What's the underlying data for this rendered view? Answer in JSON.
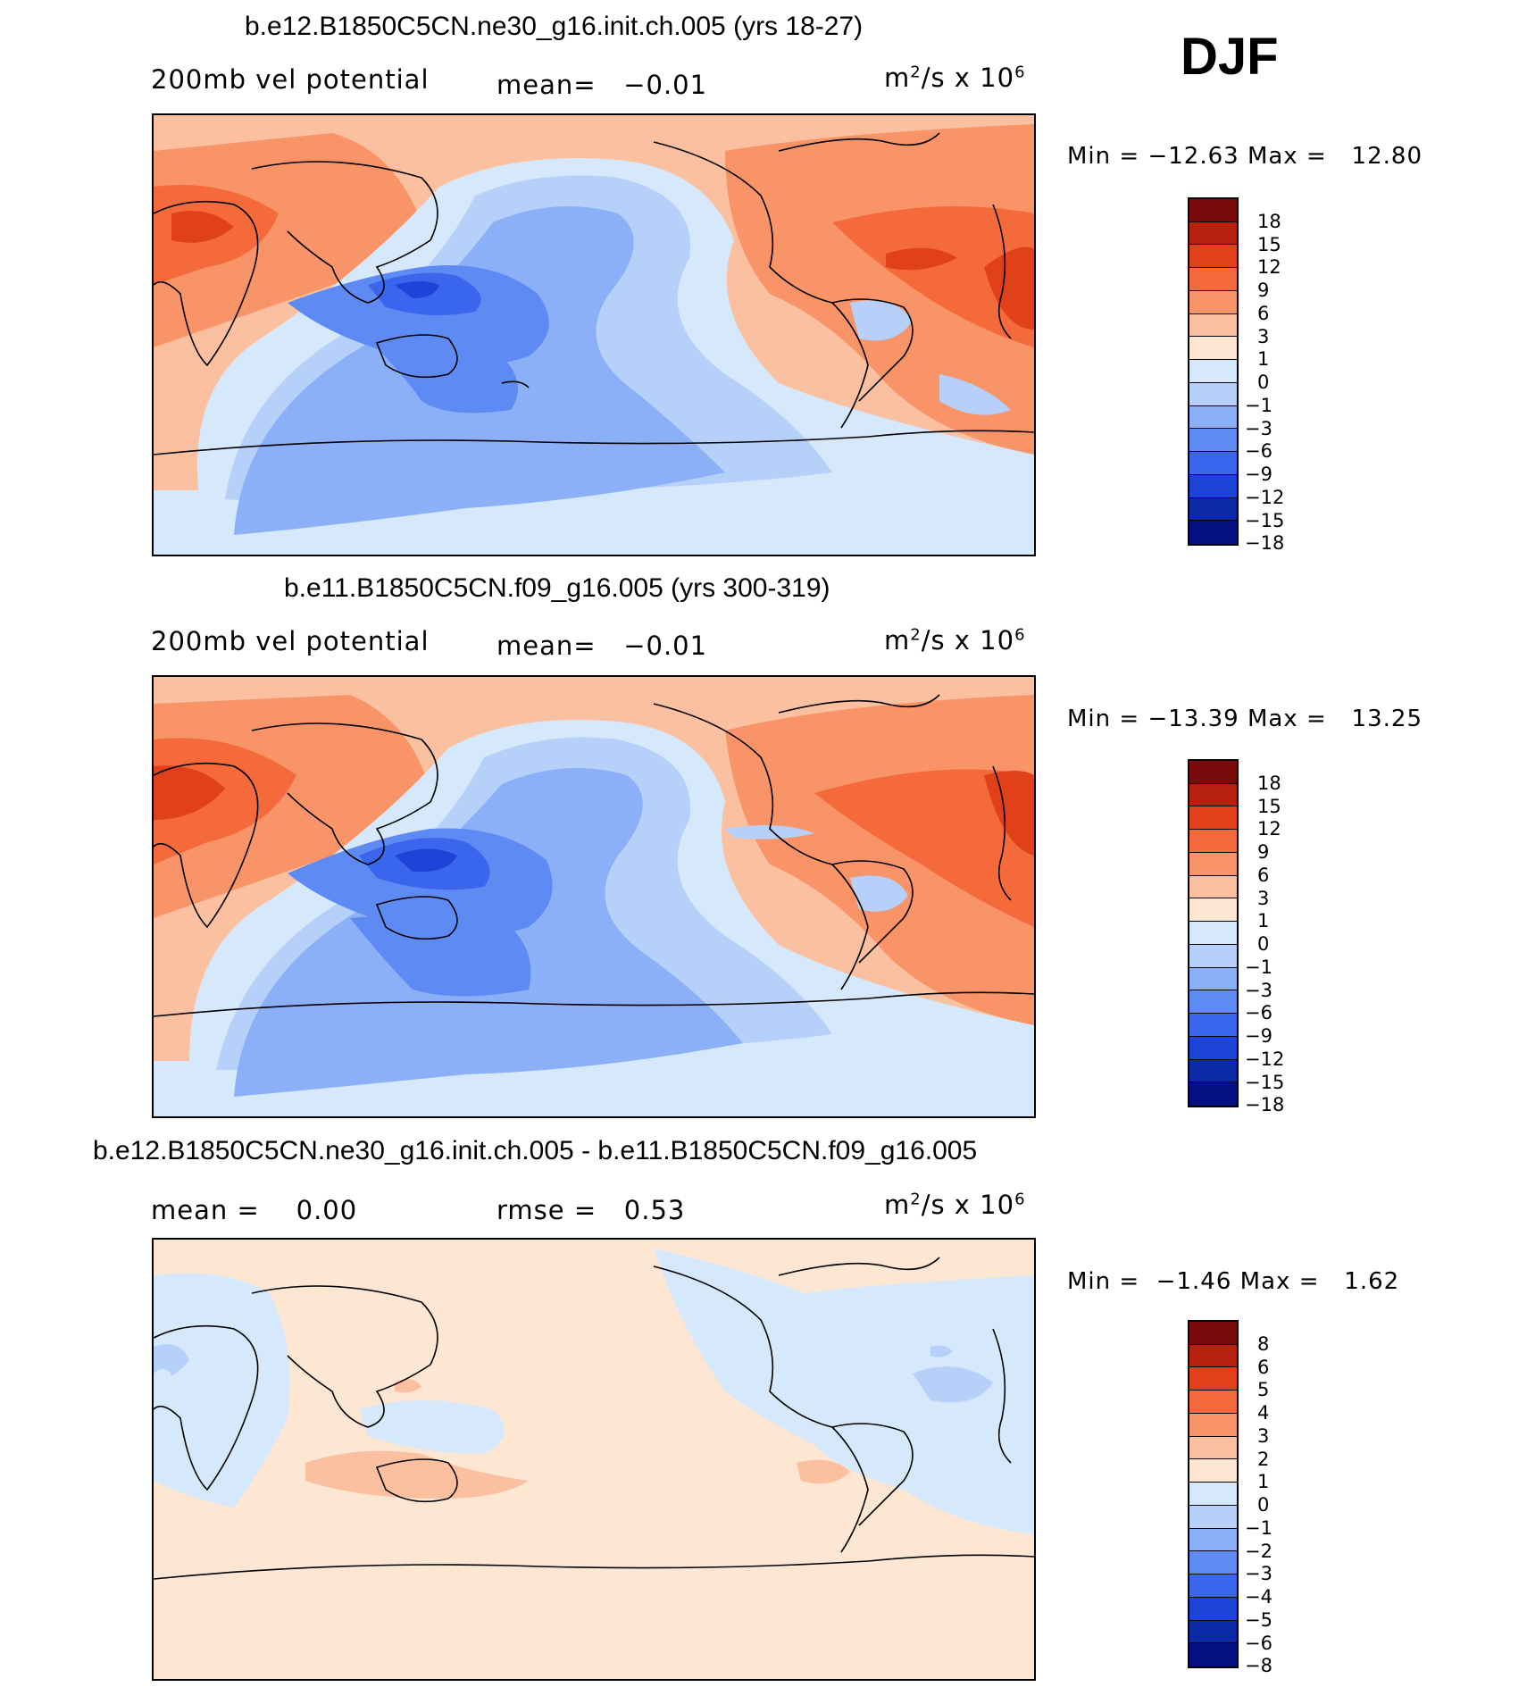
{
  "season": "DJF",
  "panels": [
    {
      "title": "b.e12.B1850C5CN.ne30_g16.init.ch.005 (yrs 18-27)",
      "left_label": "200mb vel potential",
      "mid_label": "mean=",
      "mid_value": "−0.01",
      "units_base": "m",
      "units_mid": "/s x 10",
      "units_exp2": "2",
      "units_exp6": "6",
      "min_label": "Min =",
      "min_value": "−12.63",
      "max_label": "Max =",
      "max_value": "12.80",
      "colorbar": {
        "colors": [
          "#7a0a0a",
          "#b8200e",
          "#e0401a",
          "#f56a3a",
          "#f89468",
          "#fbc0a0",
          "#fde6d2",
          "#d6e8fb",
          "#b6d0fa",
          "#8cb0f7",
          "#5e8af3",
          "#3a66ee",
          "#1c44d8",
          "#0a2aa8",
          "#040f80"
        ],
        "labels": [
          "18",
          "15",
          "12",
          "9",
          "6",
          "3",
          "1",
          "0",
          "−1",
          "−3",
          "−6",
          "−9",
          "−12",
          "−15",
          "−18"
        ]
      }
    },
    {
      "title": "b.e11.B1850C5CN.f09_g16.005 (yrs 300-319)",
      "left_label": "200mb vel potential",
      "mid_label": "mean=",
      "mid_value": "−0.01",
      "units_base": "m",
      "units_mid": "/s x 10",
      "units_exp2": "2",
      "units_exp6": "6",
      "min_label": "Min =",
      "min_value": "−13.39",
      "max_label": "Max =",
      "max_value": "13.25",
      "colorbar": {
        "colors": [
          "#7a0a0a",
          "#b8200e",
          "#e0401a",
          "#f56a3a",
          "#f89468",
          "#fbc0a0",
          "#fde6d2",
          "#d6e8fb",
          "#b6d0fa",
          "#8cb0f7",
          "#5e8af3",
          "#3a66ee",
          "#1c44d8",
          "#0a2aa8",
          "#040f80"
        ],
        "labels": [
          "18",
          "15",
          "12",
          "9",
          "6",
          "3",
          "1",
          "0",
          "−1",
          "−3",
          "−6",
          "−9",
          "−12",
          "−15",
          "−18"
        ]
      }
    },
    {
      "title": "b.e12.B1850C5CN.ne30_g16.init.ch.005 - b.e11.B1850C5CN.f09_g16.005",
      "left_label": "mean =",
      "left_value": "0.00",
      "mid_label": "rmse =",
      "mid_value": "0.53",
      "units_base": "m",
      "units_mid": "/s x 10",
      "units_exp2": "2",
      "units_exp6": "6",
      "min_label": "Min =",
      "min_value": "−1.46",
      "max_label": "Max =",
      "max_value": "1.62",
      "colorbar": {
        "colors": [
          "#7a0a0a",
          "#b8200e",
          "#e0401a",
          "#f56a3a",
          "#f89468",
          "#fbc0a0",
          "#fde6d2",
          "#d6e8fb",
          "#b6d0fa",
          "#8cb0f7",
          "#5e8af3",
          "#3a66ee",
          "#1c44d8",
          "#0a2aa8",
          "#040f80"
        ],
        "labels": [
          "8",
          "6",
          "5",
          "4",
          "3",
          "2",
          "1",
          "0",
          "−1",
          "−2",
          "−3",
          "−4",
          "−5",
          "−6",
          "−8"
        ]
      }
    }
  ],
  "style": {
    "ocean_neg_light": "#d6e8fb",
    "neg_mid": "#8cb0f7",
    "neg_strong": "#3a66ee",
    "pos_light": "#fde6d2",
    "pos_mid": "#f89468",
    "pos_strong": "#e0401a"
  }
}
